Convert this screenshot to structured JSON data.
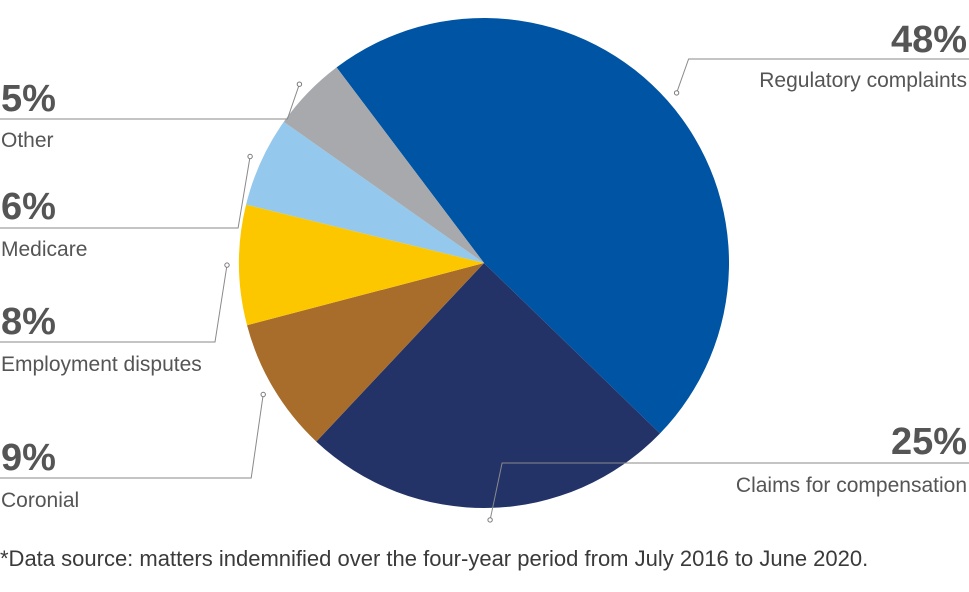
{
  "chart_data": {
    "type": "pie",
    "slices": [
      {
        "label": "Regulatory complaints",
        "value": 48,
        "value_label": "48%",
        "color": "#0054A4"
      },
      {
        "label": "Claims for compensation",
        "value": 25,
        "value_label": "25%",
        "color": "#233368"
      },
      {
        "label": "Coronial",
        "value": 9,
        "value_label": "9%",
        "color": "#A86D2A"
      },
      {
        "label": "Employment disputes",
        "value": 8,
        "value_label": "8%",
        "color": "#FDC700"
      },
      {
        "label": "Medicare",
        "value": 6,
        "value_label": "6%",
        "color": "#94C8EC"
      },
      {
        "label": "Other",
        "value": 5,
        "value_label": "5%",
        "color": "#A7A9AC"
      }
    ],
    "legend": "none",
    "label_style": "leader-lines"
  },
  "footnote": "*Data source: matters indemnified over the four-year period from July 2016 to June 2020."
}
